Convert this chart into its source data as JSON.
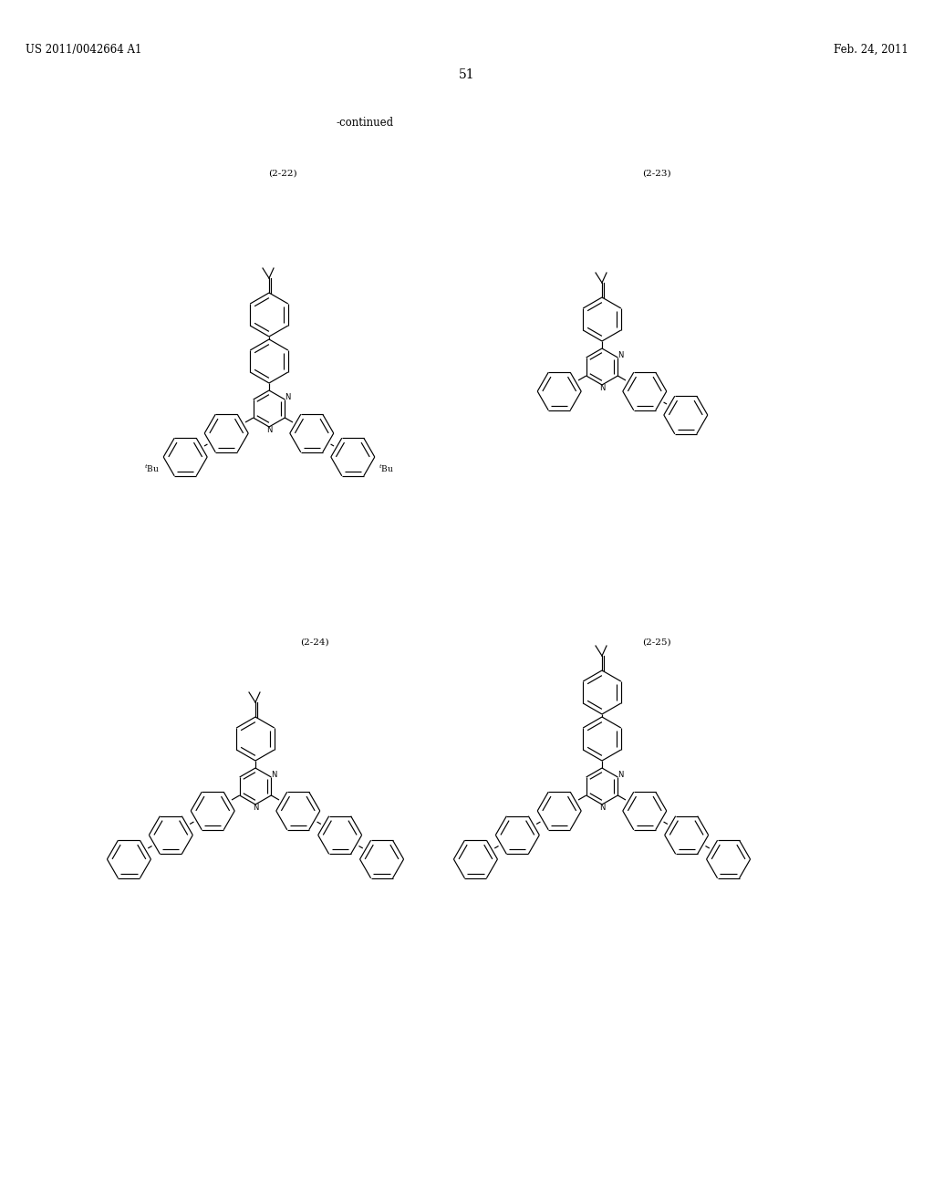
{
  "background_color": "#ffffff",
  "page_number": "51",
  "header_left": "US 2011/0042664 A1",
  "header_right": "Feb. 24, 2011",
  "continued_text": "-continued",
  "compound_labels": [
    "(2-22)",
    "(2-23)",
    "(2-24)",
    "(2-25)"
  ],
  "figsize": [
    10.24,
    13.2
  ],
  "dpi": 100
}
